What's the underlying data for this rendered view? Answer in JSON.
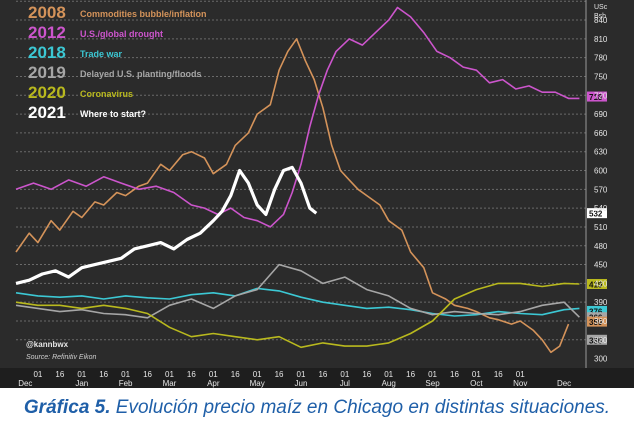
{
  "chart_data": {
    "type": "line",
    "title": "",
    "xlabel": "",
    "ylabel": "",
    "y_unit_label": [
      "USc",
      "Bsh"
    ],
    "ylim": [
      285,
      872
    ],
    "yticks": [
      330,
      360,
      390,
      420,
      450,
      480,
      510,
      540,
      570,
      600,
      630,
      660,
      690,
      720,
      750,
      780,
      810,
      840,
      870
    ],
    "yticks_shown": [
      300,
      330,
      360,
      390,
      420,
      450,
      480,
      510,
      540,
      570,
      600,
      630,
      660,
      690,
      720,
      750,
      780,
      810,
      840,
      870
    ],
    "x_day_labels": [
      "01",
      "16",
      "01",
      "16",
      "01",
      "16",
      "01",
      "16",
      "01",
      "16",
      "01",
      "16",
      "01",
      "16",
      "01",
      "16",
      "01",
      "16",
      "01",
      "16",
      "01",
      "16",
      "01"
    ],
    "x_month_labels": [
      "Dec",
      "Jan",
      "Feb",
      "Mar",
      "Apr",
      "May",
      "Jun",
      "Jul",
      "Aug",
      "Sep",
      "Oct",
      "Nov",
      "Dec"
    ],
    "x_range": [
      0,
      13
    ],
    "grid": true,
    "legend_position": "top-left",
    "series": [
      {
        "name": "Commodities bubble/inflation",
        "year": "2008",
        "color": "#d4935a",
        "x": [
          0,
          0.3,
          0.5,
          0.8,
          1.0,
          1.3,
          1.5,
          1.8,
          2.0,
          2.3,
          2.5,
          2.8,
          3.0,
          3.3,
          3.5,
          3.8,
          4.0,
          4.3,
          4.5,
          4.8,
          5.0,
          5.3,
          5.5,
          5.8,
          6.0,
          6.2,
          6.4,
          6.6,
          6.8,
          7.0,
          7.2,
          7.4,
          7.6,
          7.8,
          8.0,
          8.3,
          8.5,
          8.8,
          9.0,
          9.3,
          9.5,
          9.8,
          10.0,
          10.3,
          10.5,
          10.8,
          11.0,
          11.3,
          11.5,
          11.8,
          12.0,
          12.2,
          12.4,
          12.6
        ],
        "y": [
          470,
          500,
          485,
          520,
          505,
          535,
          525,
          550,
          545,
          565,
          560,
          575,
          580,
          610,
          600,
          625,
          630,
          620,
          595,
          610,
          640,
          660,
          690,
          705,
          760,
          790,
          810,
          775,
          745,
          700,
          640,
          600,
          585,
          570,
          560,
          545,
          520,
          505,
          470,
          445,
          405,
          395,
          385,
          380,
          375,
          365,
          362,
          355,
          360,
          345,
          330,
          310,
          320,
          355
        ]
      },
      {
        "name": "U.S./global drought",
        "year": "2012",
        "color": "#cc55cc",
        "x": [
          0,
          0.4,
          0.8,
          1.2,
          1.6,
          2.0,
          2.4,
          2.8,
          3.2,
          3.6,
          4.0,
          4.3,
          4.6,
          4.9,
          5.2,
          5.5,
          5.8,
          6.1,
          6.3,
          6.5,
          6.7,
          6.9,
          7.1,
          7.3,
          7.6,
          7.9,
          8.2,
          8.5,
          8.7,
          9.0,
          9.3,
          9.6,
          9.9,
          10.2,
          10.5,
          10.8,
          11.1,
          11.4,
          11.7,
          12.0,
          12.3,
          12.6,
          12.85
        ],
        "y": [
          570,
          580,
          570,
          585,
          575,
          590,
          580,
          570,
          575,
          565,
          545,
          540,
          530,
          540,
          525,
          520,
          510,
          530,
          565,
          610,
          670,
          720,
          760,
          790,
          810,
          800,
          820,
          840,
          860,
          845,
          820,
          790,
          780,
          765,
          760,
          740,
          745,
          730,
          735,
          725,
          725,
          715,
          715
        ]
      },
      {
        "name": "Trade war",
        "year": "2018",
        "color": "#3cc8d4",
        "x": [
          0,
          0.5,
          1.0,
          1.5,
          2.0,
          2.5,
          3.0,
          3.5,
          4.0,
          4.5,
          5.0,
          5.5,
          6.0,
          6.5,
          7.0,
          7.5,
          8.0,
          8.5,
          9.0,
          9.5,
          10.0,
          10.5,
          11.0,
          11.5,
          12.0,
          12.5,
          12.85
        ],
        "y": [
          405,
          400,
          398,
          400,
          395,
          400,
          397,
          395,
          402,
          405,
          400,
          412,
          408,
          398,
          390,
          385,
          380,
          382,
          378,
          372,
          368,
          370,
          375,
          372,
          370,
          378,
          380
        ]
      },
      {
        "name": "Delayed U.S. planting/floods",
        "year": "2019",
        "color": "#a6a6a6",
        "x": [
          0,
          0.5,
          1.0,
          1.5,
          2.0,
          2.5,
          3.0,
          3.5,
          4.0,
          4.5,
          5.0,
          5.5,
          6.0,
          6.5,
          7.0,
          7.5,
          8.0,
          8.5,
          9.0,
          9.5,
          10.0,
          10.5,
          11.0,
          11.5,
          12.0,
          12.5,
          12.85
        ],
        "y": [
          385,
          380,
          375,
          378,
          372,
          370,
          365,
          385,
          395,
          380,
          400,
          410,
          450,
          440,
          420,
          430,
          410,
          400,
          380,
          370,
          375,
          372,
          370,
          375,
          385,
          390,
          366
        ]
      },
      {
        "name": "Coronavirus",
        "year": "2020",
        "color": "#b9b91e",
        "x": [
          0,
          0.5,
          1.0,
          1.5,
          2.0,
          2.5,
          3.0,
          3.5,
          4.0,
          4.5,
          5.0,
          5.5,
          6.0,
          6.5,
          7.0,
          7.5,
          8.0,
          8.5,
          9.0,
          9.5,
          10.0,
          10.5,
          11.0,
          11.5,
          12.0,
          12.5,
          12.85
        ],
        "y": [
          390,
          385,
          385,
          380,
          385,
          380,
          372,
          350,
          335,
          340,
          335,
          330,
          335,
          318,
          325,
          320,
          320,
          325,
          340,
          360,
          395,
          410,
          420,
          420,
          415,
          420,
          419
        ]
      },
      {
        "name": "Where to start?",
        "year": "2021",
        "color": "#ffffff",
        "x": [
          0,
          0.3,
          0.6,
          0.9,
          1.2,
          1.5,
          1.8,
          2.1,
          2.4,
          2.7,
          3.0,
          3.3,
          3.6,
          3.9,
          4.2,
          4.5,
          4.7,
          4.9,
          5.1,
          5.3,
          5.5,
          5.7,
          5.9,
          6.1,
          6.3,
          6.5,
          6.7,
          6.85
        ],
        "y": [
          420,
          425,
          435,
          440,
          430,
          445,
          450,
          455,
          460,
          475,
          480,
          485,
          475,
          490,
          500,
          520,
          535,
          560,
          600,
          580,
          545,
          530,
          570,
          600,
          605,
          580,
          540,
          532
        ]
      }
    ],
    "end_labels": [
      "718",
      "532",
      "419",
      "376",
      "366",
      "359",
      "330"
    ],
    "annotations": [
      "@kannbwx",
      "Source: Refinitiv Eikon"
    ]
  },
  "caption": {
    "bold": "Gráfica 5.",
    "text": " Evolución precio maíz en Chicago en distintas situaciones."
  }
}
